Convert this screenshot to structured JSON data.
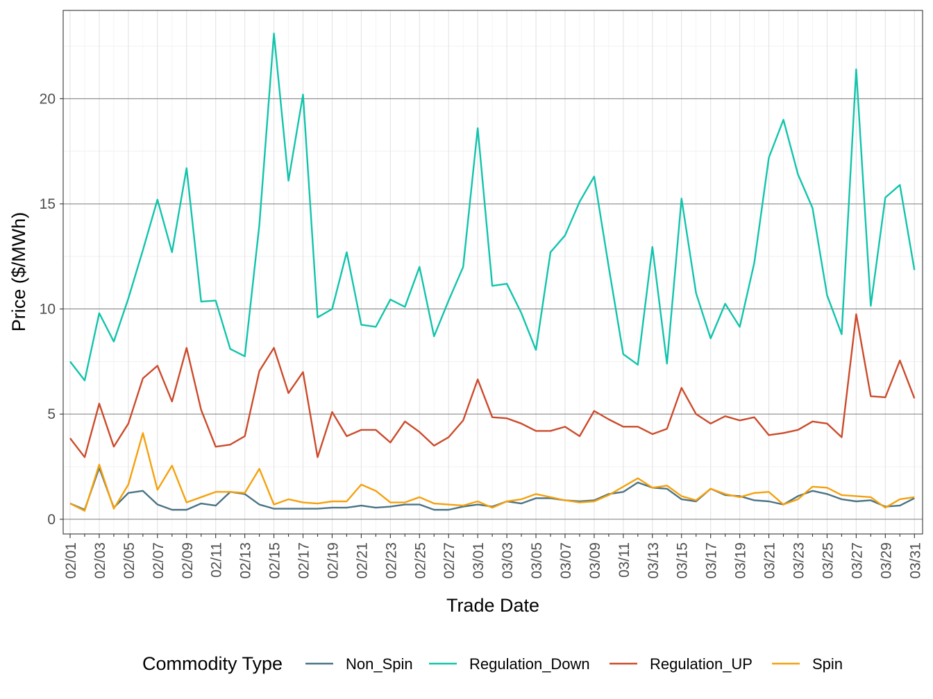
{
  "chart_data": {
    "type": "line",
    "xlabel": "Trade Date",
    "ylabel": "Price ($/MWh)",
    "ylim": [
      -0.7,
      24.2
    ],
    "y_ticks": [
      0,
      5,
      10,
      15,
      20
    ],
    "y_tick_labels": [
      "0",
      "5",
      "10",
      "15",
      "20"
    ],
    "grid": true,
    "legend_position": "bottom",
    "legend_title": "Commodity Type",
    "x": [
      "02/01",
      "02/02",
      "02/03",
      "02/04",
      "02/05",
      "02/06",
      "02/07",
      "02/08",
      "02/09",
      "02/10",
      "02/11",
      "02/12",
      "02/13",
      "02/14",
      "02/15",
      "02/16",
      "02/17",
      "02/18",
      "02/19",
      "02/20",
      "02/21",
      "02/22",
      "02/23",
      "02/24",
      "02/25",
      "02/26",
      "02/27",
      "02/28",
      "03/01",
      "03/02",
      "03/03",
      "03/04",
      "03/05",
      "03/06",
      "03/07",
      "03/08",
      "03/09",
      "03/10",
      "03/11",
      "03/12",
      "03/13",
      "03/14",
      "03/15",
      "03/16",
      "03/17",
      "03/18",
      "03/19",
      "03/20",
      "03/21",
      "03/22",
      "03/23",
      "03/24",
      "03/25",
      "03/26",
      "03/27",
      "03/28",
      "03/29",
      "03/30",
      "03/31"
    ],
    "x_tick_labels": [
      "02/01",
      "02/03",
      "02/05",
      "02/07",
      "02/09",
      "02/11",
      "02/13",
      "02/15",
      "02/17",
      "02/19",
      "02/21",
      "02/23",
      "02/25",
      "02/27",
      "03/01",
      "03/03",
      "03/05",
      "03/07",
      "03/09",
      "03/11",
      "03/13",
      "03/15",
      "03/17",
      "03/19",
      "03/21",
      "03/23",
      "03/25",
      "03/27",
      "03/29",
      "03/31"
    ],
    "series": [
      {
        "name": "Non_Spin",
        "color": "#4a7384",
        "values": [
          0.75,
          0.45,
          2.45,
          0.55,
          1.25,
          1.35,
          0.7,
          0.45,
          0.45,
          0.75,
          0.65,
          1.3,
          1.2,
          0.7,
          0.5,
          0.5,
          0.5,
          0.5,
          0.55,
          0.55,
          0.65,
          0.55,
          0.6,
          0.7,
          0.7,
          0.45,
          0.45,
          0.6,
          0.7,
          0.6,
          0.85,
          0.75,
          1.0,
          1.0,
          0.9,
          0.85,
          0.9,
          1.2,
          1.3,
          1.75,
          1.5,
          1.45,
          0.95,
          0.85,
          1.45,
          1.15,
          1.1,
          0.9,
          0.85,
          0.7,
          1.1,
          1.35,
          1.2,
          0.95,
          0.85,
          0.9,
          0.6,
          0.65,
          1.0
        ]
      },
      {
        "name": "Regulation_Down",
        "color": "#10c4ab",
        "values": [
          7.5,
          6.6,
          9.8,
          8.45,
          10.5,
          12.8,
          15.2,
          12.7,
          16.7,
          10.35,
          10.4,
          8.1,
          7.75,
          14.0,
          23.1,
          16.1,
          20.2,
          9.6,
          10.0,
          12.7,
          9.25,
          9.15,
          10.45,
          10.1,
          12.0,
          8.7,
          10.4,
          12.0,
          18.6,
          11.1,
          11.2,
          9.8,
          8.05,
          12.7,
          13.5,
          15.1,
          16.3,
          12.0,
          7.85,
          7.35,
          12.95,
          7.4,
          15.25,
          10.75,
          8.6,
          10.25,
          9.15,
          12.2,
          17.2,
          19.0,
          16.4,
          14.8,
          10.65,
          8.8,
          21.4,
          10.15,
          15.3,
          15.9,
          11.85
        ]
      },
      {
        "name": "Regulation_UP",
        "color": "#cc4a2a",
        "values": [
          3.85,
          2.95,
          5.5,
          3.45,
          4.55,
          6.7,
          7.3,
          5.6,
          8.15,
          5.2,
          3.45,
          3.55,
          3.95,
          7.05,
          8.15,
          6.0,
          7.0,
          2.95,
          5.1,
          3.95,
          4.25,
          4.25,
          3.65,
          4.65,
          4.15,
          3.5,
          3.9,
          4.7,
          6.65,
          4.85,
          4.8,
          4.55,
          4.2,
          4.2,
          4.4,
          3.95,
          5.15,
          4.75,
          4.4,
          4.4,
          4.05,
          4.3,
          6.25,
          5.0,
          4.55,
          4.9,
          4.7,
          4.85,
          4.0,
          4.1,
          4.25,
          4.65,
          4.55,
          3.9,
          9.75,
          5.85,
          5.8,
          7.55,
          5.75
        ]
      },
      {
        "name": "Spin",
        "color": "#f5a10c",
        "values": [
          0.75,
          0.4,
          2.6,
          0.5,
          1.65,
          4.1,
          1.4,
          2.55,
          0.8,
          1.05,
          1.3,
          1.3,
          1.25,
          2.4,
          0.7,
          0.95,
          0.8,
          0.75,
          0.85,
          0.85,
          1.65,
          1.35,
          0.8,
          0.8,
          1.05,
          0.75,
          0.7,
          0.65,
          0.85,
          0.55,
          0.85,
          0.95,
          1.2,
          1.05,
          0.9,
          0.8,
          0.85,
          1.15,
          1.55,
          1.95,
          1.5,
          1.6,
          1.1,
          0.9,
          1.45,
          1.2,
          1.05,
          1.25,
          1.3,
          0.7,
          0.95,
          1.55,
          1.5,
          1.15,
          1.1,
          1.05,
          0.55,
          0.95,
          1.05
        ]
      }
    ]
  }
}
